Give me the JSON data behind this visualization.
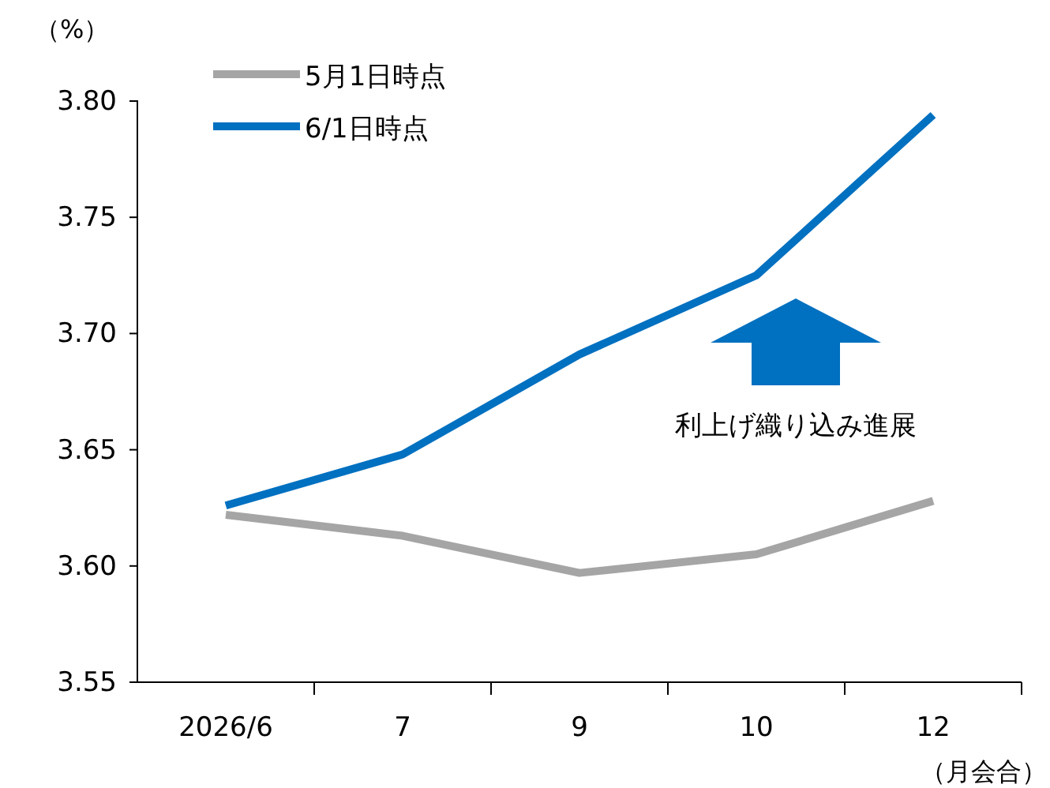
{
  "chart_data": {
    "type": "line",
    "ylabel": "（%）",
    "xlabel": "（月会合）",
    "categories": [
      "2026/6",
      "7",
      "9",
      "10",
      "12"
    ],
    "series": [
      {
        "name": "5月1日時点",
        "color": "#a5a5a5",
        "values": [
          3.622,
          3.613,
          3.597,
          3.605,
          3.628
        ]
      },
      {
        "name": "6/1日時点",
        "color": "#0070c0",
        "values": [
          3.626,
          3.648,
          3.691,
          3.725,
          3.794
        ]
      }
    ],
    "ylim": [
      3.55,
      3.8
    ],
    "yticks": [
      {
        "value": 3.55,
        "label": "3.55"
      },
      {
        "value": 3.6,
        "label": "3.60"
      },
      {
        "value": 3.65,
        "label": "3.65"
      },
      {
        "value": 3.7,
        "label": "3.70"
      },
      {
        "value": 3.75,
        "label": "3.75"
      },
      {
        "value": 3.8,
        "label": "3.80"
      }
    ],
    "annotations": [
      "利上げ織り込み進展"
    ],
    "legend": "top left",
    "grid": false,
    "marker": "none",
    "line_style": "solid"
  }
}
